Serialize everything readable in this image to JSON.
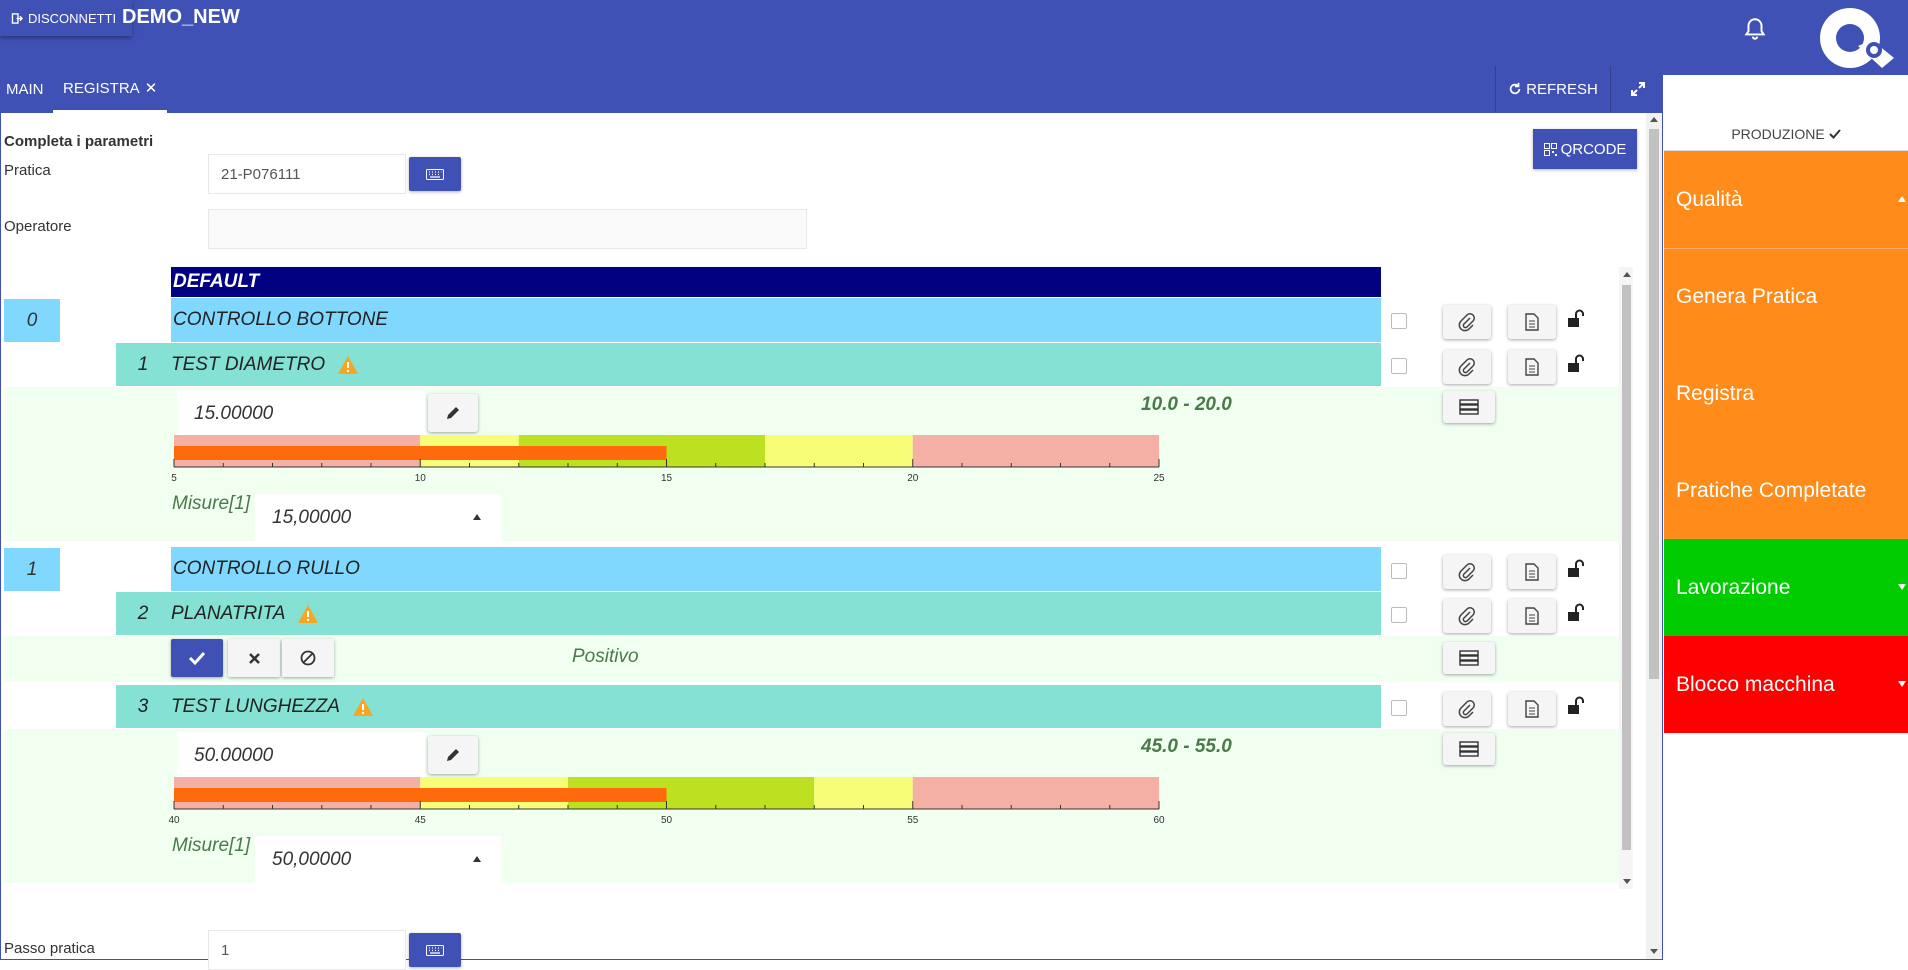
{
  "topbar": {
    "disconnect_label": "DISCONNETTI",
    "app_title": "DEMO_NEW"
  },
  "tabs": {
    "main": "MAIN",
    "registra": "REGISTRA",
    "close": "✕"
  },
  "toolbar": {
    "refresh_label": "REFRESH"
  },
  "form": {
    "section_title": "Completa i parametri",
    "pratica_label": "Pratica",
    "pratica_value": "21-P076111",
    "operatore_label": "Operatore",
    "operatore_value": "",
    "qrcode_label": "QRCODE",
    "passo_label": "Passo pratica",
    "passo_value": "1"
  },
  "list": {
    "group_header": "DEFAULT",
    "items": [
      {
        "num": "0",
        "title": "CONTROLLO BOTTONE"
      },
      {
        "num": "1",
        "title": "TEST DIAMETRO",
        "value": "15.00000",
        "range": "10.0 - 20.0",
        "misure_label": "Misure[1]",
        "misure_value": "15,00000"
      },
      {
        "num": "1",
        "title": "CONTROLLO RULLO"
      },
      {
        "num": "2",
        "title": "PLANATRITA",
        "result": "Positivo"
      },
      {
        "num": "3",
        "title": "TEST LUNGHEZZA",
        "value": "50.00000",
        "range": "45.0 - 55.0",
        "misure_label": "Misure[1]",
        "misure_value": "50,00000"
      }
    ]
  },
  "gauges": [
    {
      "min": 5,
      "max": 25,
      "value": 15,
      "ticks": [
        "5",
        "10",
        "15",
        "20",
        "25"
      ],
      "bands": [
        5,
        10,
        12,
        17,
        20,
        25
      ]
    },
    {
      "min": 40,
      "max": 60,
      "value": 50,
      "ticks": [
        "40",
        "45",
        "50",
        "55",
        "60"
      ],
      "bands": [
        40,
        45,
        48,
        53,
        55,
        60
      ]
    }
  ],
  "sidebar": {
    "header": "PRODUZIONE",
    "items": [
      {
        "label": "Qualità",
        "color": "#ff8c1a"
      },
      {
        "label": "Genera Pratica",
        "color": "#ff8c1a"
      },
      {
        "label": "Registra",
        "color": "#ff8c1a"
      },
      {
        "label": "Pratiche Completate",
        "color": "#ff8c1a"
      },
      {
        "label": "Lavorazione",
        "color": "#00cc00"
      },
      {
        "label": "Blocco macchina",
        "color": "#ff0000"
      }
    ]
  },
  "colors": {
    "primary": "#3f51b5",
    "band_red": "#f4b0a4",
    "band_yellow": "#f8fd78",
    "band_green": "#bde021",
    "bar_orange": "#ff6a0c"
  }
}
